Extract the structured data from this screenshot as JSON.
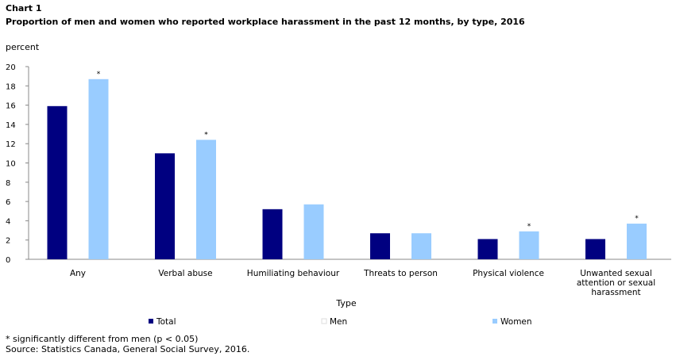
{
  "header": {
    "label": "Chart 1",
    "title": "Proportion of men and women who reported workplace harassment in the past 12 months, by type, 2016",
    "unit": "percent"
  },
  "chart_data": {
    "type": "bar",
    "categories": [
      "Any",
      "Verbal abuse",
      "Humiliating behaviour",
      "Threats to person",
      "Physical violence",
      "Unwanted sexual attention or sexual harassment"
    ],
    "category_lines": [
      [
        "Any"
      ],
      [
        "Verbal abuse"
      ],
      [
        "Humiliating behaviour"
      ],
      [
        "Threats to person"
      ],
      [
        "Physical violence"
      ],
      [
        "Unwanted sexual",
        "attention or sexual",
        "harassment"
      ]
    ],
    "series": [
      {
        "name": "Total",
        "color": "#000080",
        "values": [
          15.9,
          11.0,
          5.2,
          2.7,
          2.1,
          2.1
        ]
      },
      {
        "name": "Women",
        "color": "#99ccff",
        "values": [
          18.7,
          12.4,
          5.7,
          2.7,
          2.9,
          3.7
        ]
      }
    ],
    "legend": [
      {
        "name": "Total",
        "color": "#000080"
      },
      {
        "name": "Men",
        "color": "#ffffff"
      },
      {
        "name": "Women",
        "color": "#99ccff"
      }
    ],
    "significance_marker": "*",
    "significant": [
      true,
      true,
      false,
      false,
      true,
      true
    ],
    "xlabel": "Type",
    "ylabel": "percent",
    "ylim": [
      0,
      20
    ],
    "yticks": [
      "0",
      "2",
      "4",
      "6",
      "8",
      "10",
      "12",
      "14",
      "16",
      "18",
      "20"
    ],
    "grid": false,
    "legend_position": "bottom"
  },
  "footer": {
    "note": "* significantly different from men (p < 0.05)",
    "source": "Source: Statistics Canada, General Social Survey, 2016."
  }
}
